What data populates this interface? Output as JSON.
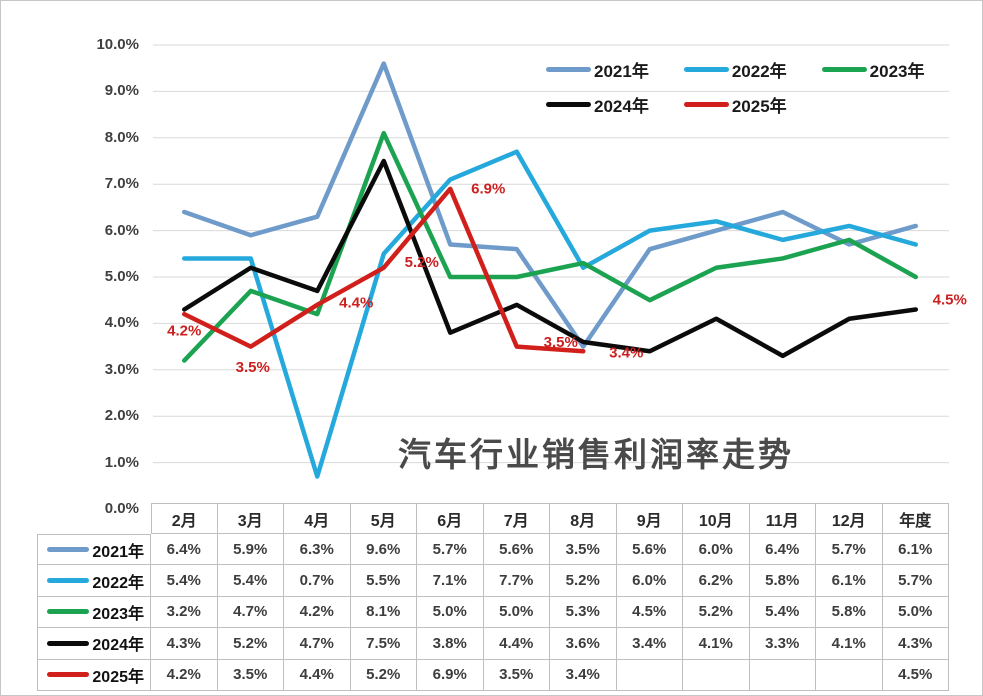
{
  "chart_data": {
    "type": "line",
    "title": "汽车行业销售利润率走势",
    "categories": [
      "2月",
      "3月",
      "4月",
      "5月",
      "6月",
      "7月",
      "8月",
      "9月",
      "10月",
      "11月",
      "12月",
      "年度"
    ],
    "y_ticks": [
      "0.0%",
      "1.0%",
      "2.0%",
      "3.0%",
      "4.0%",
      "5.0%",
      "6.0%",
      "7.0%",
      "8.0%",
      "9.0%",
      "10.0%"
    ],
    "ylim": [
      0,
      10
    ],
    "grid": true,
    "gridline_color": "#d9d9d9",
    "legend_position": "top-right",
    "legend_rows": [
      3,
      2
    ],
    "series": [
      {
        "name": "2021年",
        "color": "#6F9BCB",
        "values": [
          6.4,
          5.9,
          6.3,
          9.6,
          5.7,
          5.6,
          3.5,
          5.6,
          6.0,
          6.4,
          5.7,
          6.1
        ]
      },
      {
        "name": "2022年",
        "color": "#25A9DC",
        "values": [
          5.4,
          5.4,
          0.7,
          5.5,
          7.1,
          7.7,
          5.2,
          6.0,
          6.2,
          5.8,
          6.1,
          5.7
        ]
      },
      {
        "name": "2023年",
        "color": "#1CA351",
        "values": [
          3.2,
          4.7,
          4.2,
          8.1,
          5.0,
          5.0,
          5.3,
          4.5,
          5.2,
          5.4,
          5.8,
          5.0
        ]
      },
      {
        "name": "2024年",
        "color": "#0B0B0B",
        "values": [
          4.3,
          5.2,
          4.7,
          7.5,
          3.8,
          4.4,
          3.6,
          3.4,
          4.1,
          3.3,
          4.1,
          4.3
        ]
      },
      {
        "name": "2025年",
        "color": "#D1201B",
        "values": [
          4.2,
          3.5,
          4.4,
          5.2,
          6.9,
          3.5,
          3.4,
          null,
          null,
          null,
          null,
          4.5
        ],
        "show_point_labels": true,
        "label_color": "#CC2020",
        "point_labels": [
          "4.2%",
          "3.5%",
          "4.4%",
          "5.2%",
          "6.9%",
          "3.5%",
          "3.4%",
          "",
          "",
          "",
          "",
          "4.5%"
        ],
        "label_offsets": [
          [
            0,
            17
          ],
          [
            2,
            21
          ],
          [
            39,
            -2
          ],
          [
            38,
            -5
          ],
          [
            38,
            0
          ],
          [
            44,
            -4
          ],
          [
            43,
            2
          ],
          null,
          null,
          null,
          null,
          [
            34,
            0
          ]
        ]
      }
    ]
  }
}
